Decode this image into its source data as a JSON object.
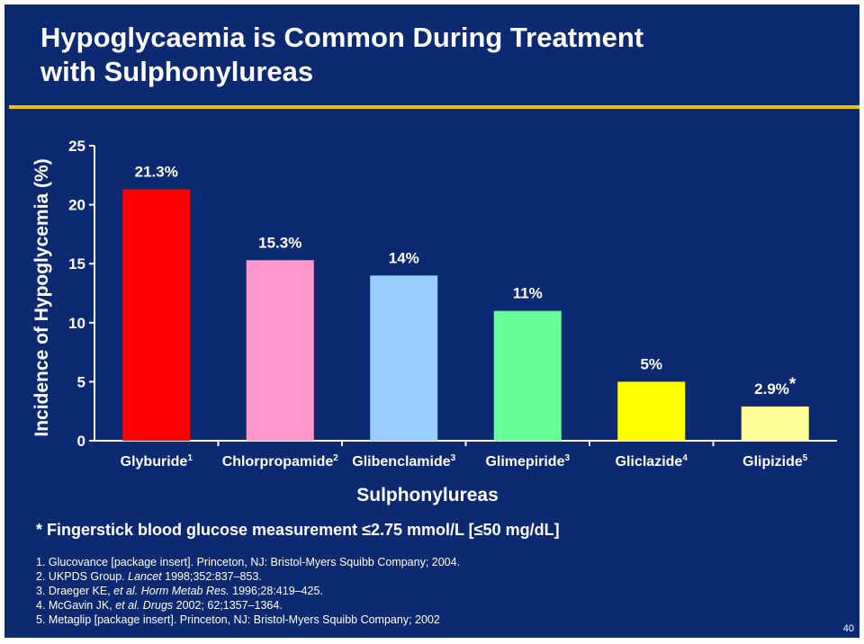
{
  "slide": {
    "title_line1": "Hypoglycaemia is Common During Treatment",
    "title_line2": "with Sulphonylureas",
    "footnote": "* Fingerstick blood glucose measurement ≤2.75 mmol/L [≤50 mg/dL]",
    "page_number": "40",
    "background_color": "#0b2a72",
    "accent_color": "#f2c200"
  },
  "references": [
    {
      "pre": "1. Glucovance [package insert]. Princeton, NJ: Bristol-Myers Squibb Company; 2004.",
      "ital": "",
      "post": ""
    },
    {
      "pre": "2. UKPDS Group. ",
      "ital": "Lancet",
      "post": " 1998;352:837–853."
    },
    {
      "pre": "3. Draeger KE, ",
      "ital": "et al. Horm Metab Res.",
      "post": " 1996;28:419–425."
    },
    {
      "pre": "4. McGavin JK, ",
      "ital": "et al. Drugs",
      "post": " 2002; 62;1357–1364."
    },
    {
      "pre": "5. Metaglip [package insert]. Princeton, NJ: Bristol-Myers Squibb Company; 2002",
      "ital": "",
      "post": ""
    }
  ],
  "chart_data": {
    "type": "bar",
    "xlabel": "Sulphonylureas",
    "ylabel": "Incidence of Hypoglycemia (%)",
    "ylim": [
      0,
      25
    ],
    "yticks": [
      0,
      5,
      10,
      15,
      20,
      25
    ],
    "grid": false,
    "categories": [
      {
        "name": "Glyburide",
        "sup": "1"
      },
      {
        "name": "Chlorpropamide",
        "sup": "2"
      },
      {
        "name": "Glibenclamide",
        "sup": "3"
      },
      {
        "name": "Glimepiride",
        "sup": "3"
      },
      {
        "name": "Gliclazide",
        "sup": "4"
      },
      {
        "name": "Glipizide",
        "sup": "5"
      }
    ],
    "values": [
      21.3,
      15.3,
      14,
      11,
      5,
      2.9
    ],
    "data_labels": [
      "21.3%",
      "15.3%",
      "14%",
      "11%",
      "5%",
      "2.9%"
    ],
    "label_marks": [
      "",
      "",
      "",
      "",
      "",
      "*"
    ],
    "colors": [
      "#ff0000",
      "#ff99cc",
      "#99ccff",
      "#66ff99",
      "#ffff00",
      "#ffff99"
    ]
  }
}
